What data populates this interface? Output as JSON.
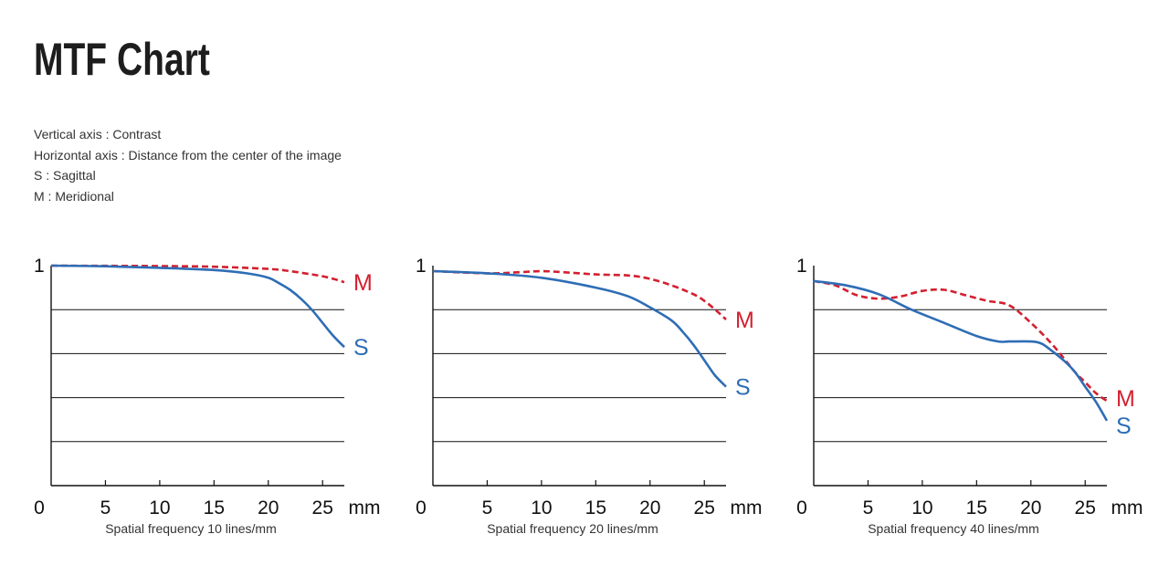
{
  "page": {
    "title": "MTF Chart",
    "notes": [
      "Vertical axis : Contrast",
      "Horizontal axis : Distance from the center of the image",
      "S : Sagittal",
      "M : Meridional"
    ]
  },
  "colors": {
    "sagittal": "#2e6db5",
    "meridional": "#d3202f",
    "axis": "#111111",
    "grid": "#111111"
  },
  "chart_data": [
    {
      "type": "line",
      "caption": "Spatial frequency 10 lines/mm",
      "x_unit": "mm",
      "y_top_label": "1",
      "x_ticks": [
        0,
        5,
        10,
        15,
        20,
        25
      ],
      "xlim": [
        0,
        27
      ],
      "ylim": [
        0,
        1
      ],
      "y_gridlines": [
        0.2,
        0.4,
        0.6,
        0.8
      ],
      "grid": true,
      "series": [
        {
          "name": "M",
          "style": "dashed",
          "color": "meridional",
          "x": [
            0,
            5,
            10,
            15,
            20,
            22,
            24,
            25,
            26,
            27
          ],
          "y": [
            1.0,
            0.999,
            0.998,
            0.995,
            0.985,
            0.975,
            0.96,
            0.952,
            0.94,
            0.925
          ]
        },
        {
          "name": "S",
          "style": "solid",
          "color": "sagittal",
          "x": [
            0,
            5,
            10,
            15,
            18,
            20,
            21,
            22,
            23,
            24,
            25,
            26,
            27
          ],
          "y": [
            1.0,
            0.997,
            0.99,
            0.98,
            0.965,
            0.945,
            0.92,
            0.89,
            0.85,
            0.8,
            0.74,
            0.68,
            0.63
          ]
        }
      ]
    },
    {
      "type": "line",
      "caption": "Spatial frequency 20 lines/mm",
      "x_unit": "mm",
      "y_top_label": "1",
      "x_ticks": [
        0,
        5,
        10,
        15,
        20,
        25
      ],
      "xlim": [
        0,
        27
      ],
      "ylim": [
        0,
        1
      ],
      "y_gridlines": [
        0.2,
        0.4,
        0.6,
        0.8
      ],
      "grid": true,
      "series": [
        {
          "name": "M",
          "style": "dashed",
          "color": "meridional",
          "x": [
            0,
            5,
            8,
            10,
            12,
            15,
            18,
            20,
            22,
            24,
            25,
            26,
            27
          ],
          "y": [
            0.975,
            0.965,
            0.97,
            0.975,
            0.97,
            0.96,
            0.955,
            0.94,
            0.91,
            0.87,
            0.84,
            0.8,
            0.755
          ]
        },
        {
          "name": "S",
          "style": "solid",
          "color": "sagittal",
          "x": [
            0,
            5,
            10,
            15,
            18,
            20,
            22,
            23,
            24,
            25,
            26,
            27
          ],
          "y": [
            0.975,
            0.965,
            0.945,
            0.9,
            0.86,
            0.81,
            0.75,
            0.7,
            0.64,
            0.57,
            0.5,
            0.45
          ]
        }
      ]
    },
    {
      "type": "line",
      "caption": "Spatial frequency 40 lines/mm",
      "x_unit": "mm",
      "y_top_label": "1",
      "x_ticks": [
        0,
        5,
        10,
        15,
        20,
        25
      ],
      "xlim": [
        0,
        27
      ],
      "ylim": [
        0,
        1
      ],
      "y_gridlines": [
        0.2,
        0.4,
        0.6,
        0.8
      ],
      "grid": true,
      "series": [
        {
          "name": "M",
          "style": "dashed",
          "color": "meridional",
          "x": [
            0,
            2,
            4,
            6,
            8,
            10,
            12,
            14,
            16,
            18,
            20,
            22,
            24,
            25,
            26,
            27
          ],
          "y": [
            0.93,
            0.91,
            0.865,
            0.85,
            0.86,
            0.885,
            0.89,
            0.865,
            0.84,
            0.82,
            0.74,
            0.64,
            0.52,
            0.47,
            0.42,
            0.385
          ]
        },
        {
          "name": "S",
          "style": "solid",
          "color": "sagittal",
          "x": [
            0,
            3,
            6,
            9,
            12,
            15,
            17,
            18,
            20,
            21,
            22,
            23,
            24,
            25,
            26,
            27
          ],
          "y": [
            0.93,
            0.91,
            0.87,
            0.8,
            0.74,
            0.68,
            0.655,
            0.655,
            0.655,
            0.645,
            0.61,
            0.57,
            0.52,
            0.45,
            0.38,
            0.295
          ]
        }
      ]
    }
  ]
}
